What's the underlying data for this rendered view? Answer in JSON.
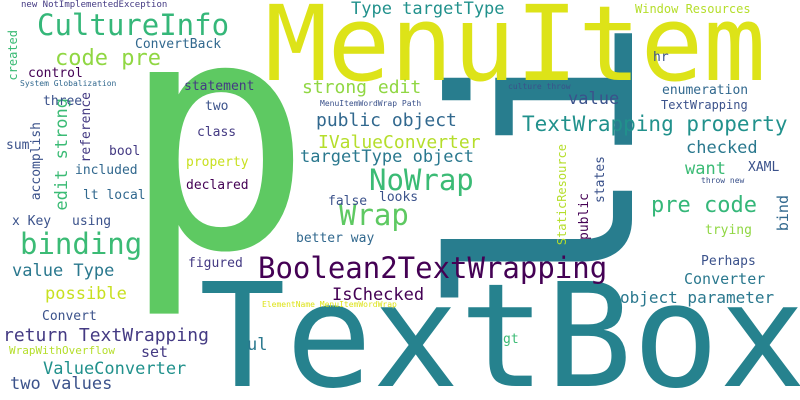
{
  "palette": {
    "purple": "#440154",
    "indigo": "#3b528b",
    "blue": "#31688e",
    "teal": "#21918c",
    "sea": "#26828e",
    "green": "#35b779",
    "lime": "#5ec962",
    "chartreuse": "#90d743",
    "yellow": "#dde318",
    "gold": "#c8e020"
  },
  "words": [
    {
      "text": "TextBox",
      "color": "#26828e"
    },
    {
      "text": "li",
      "color": "#287d8e"
    },
    {
      "text": "p",
      "color": "#5ec962"
    },
    {
      "text": "MenuItem",
      "color": "#dde318"
    },
    {
      "text": "CultureInfo",
      "color": "#35b779"
    },
    {
      "text": "Boolean2TextWrapping",
      "color": "#440154"
    },
    {
      "text": "binding",
      "color": "#3bbb75"
    },
    {
      "text": "Wrap",
      "color": "#5ec962"
    },
    {
      "text": "NoWrap",
      "color": "#3bbb75"
    },
    {
      "text": "code pre",
      "color": "#90d743"
    },
    {
      "text": "TextWrapping property",
      "color": "#21918c"
    },
    {
      "text": "pre code",
      "color": "#35b779"
    },
    {
      "text": "strong edit",
      "color": "#90d743"
    },
    {
      "text": "public object",
      "color": "#31688e"
    },
    {
      "text": "IValueConverter",
      "color": "#b5de2b"
    },
    {
      "text": "targetType object",
      "color": "#2a788e"
    },
    {
      "text": "Type targetType",
      "color": "#21918c"
    },
    {
      "text": "IsChecked",
      "color": "#440154"
    },
    {
      "text": "object parameter",
      "color": "#2a788e"
    },
    {
      "text": "return TextWrapping",
      "color": "#443a83"
    },
    {
      "text": "ValueConverter",
      "color": "#21918c"
    },
    {
      "text": "value Type",
      "color": "#2a788e"
    },
    {
      "text": "possible",
      "color": "#c8e020"
    },
    {
      "text": "two values",
      "color": "#3b528b"
    },
    {
      "text": "value",
      "color": "#3b528b"
    },
    {
      "text": "checked",
      "color": "#2a788e"
    },
    {
      "text": "want",
      "color": "#3bbb75"
    },
    {
      "text": "Converter",
      "color": "#2a788e"
    },
    {
      "text": "ul",
      "color": "#2a788e"
    },
    {
      "text": "set",
      "color": "#443a83"
    },
    {
      "text": "edit strong",
      "color": "#3bbb75"
    },
    {
      "text": "ConvertBack",
      "color": "#31688e"
    },
    {
      "text": "statement",
      "color": "#443a83"
    },
    {
      "text": "enumeration",
      "color": "#31688e"
    },
    {
      "text": "TextWrapping",
      "color": "#3b528b"
    },
    {
      "text": "Window Resources",
      "color": "#b5de2b"
    },
    {
      "text": "XAML",
      "color": "#3b528b"
    },
    {
      "text": "bind",
      "color": "#31688e"
    },
    {
      "text": "Perhaps",
      "color": "#3b528b"
    },
    {
      "text": "trying",
      "color": "#90d743"
    },
    {
      "text": "better way",
      "color": "#31688e"
    },
    {
      "text": "false",
      "color": "#3b528b"
    },
    {
      "text": "looks",
      "color": "#3b528b"
    },
    {
      "text": "figured",
      "color": "#443a83"
    },
    {
      "text": "class",
      "color": "#443a83"
    },
    {
      "text": "two",
      "color": "#3b528b"
    },
    {
      "text": "property",
      "color": "#c8e020"
    },
    {
      "text": "declared",
      "color": "#440154"
    },
    {
      "text": "bool",
      "color": "#443a83"
    },
    {
      "text": "included",
      "color": "#31688e"
    },
    {
      "text": "lt local",
      "color": "#31688e"
    },
    {
      "text": "x Key",
      "color": "#3b528b"
    },
    {
      "text": "using",
      "color": "#3b528b"
    },
    {
      "text": "Convert",
      "color": "#3b528b"
    },
    {
      "text": "control",
      "color": "#440154"
    },
    {
      "text": "three",
      "color": "#3b528b"
    },
    {
      "text": "sum",
      "color": "#3b528b"
    },
    {
      "text": "hr",
      "color": "#3b528b"
    },
    {
      "text": "gt",
      "color": "#3bbb75"
    },
    {
      "text": "WrapWithOverflow",
      "color": "#b5de2b"
    },
    {
      "text": "new NotImplementedException",
      "color": "#443a83"
    },
    {
      "text": "System Globalization",
      "color": "#31688e"
    },
    {
      "text": "MenuItemWordWrap Path",
      "color": "#3b528b"
    },
    {
      "text": "culture throw",
      "color": "#3b528b"
    },
    {
      "text": "throw new",
      "color": "#3b528b"
    },
    {
      "text": "ElementName MenuItemWordWrap",
      "color": "#dde318"
    },
    {
      "text": "accomplish",
      "color": "#3b528b"
    },
    {
      "text": "reference",
      "color": "#443a83"
    },
    {
      "text": "created",
      "color": "#3bbb75"
    },
    {
      "text": "public",
      "color": "#440154"
    },
    {
      "text": "states",
      "color": "#3b528b"
    },
    {
      "text": "StaticResource",
      "color": "#b5de2b"
    }
  ]
}
